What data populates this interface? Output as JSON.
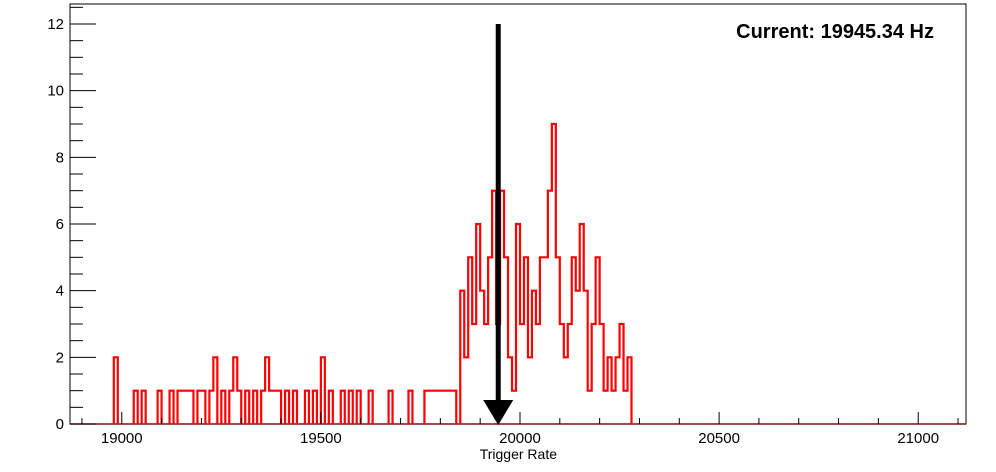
{
  "chart_data": {
    "type": "histogram",
    "xlabel": "Trigger Rate",
    "ylabel": "",
    "xlim": [
      18870,
      21120
    ],
    "ylim": [
      0,
      12.6
    ],
    "x_ticks": [
      19000,
      19500,
      20000,
      20500,
      21000
    ],
    "y_ticks": [
      0,
      2,
      4,
      6,
      8,
      10,
      12
    ],
    "grid": false,
    "bin_width": 10,
    "series": [
      {
        "color": "#ff0000",
        "bins": [
          {
            "x": 18980,
            "y": 2
          },
          {
            "x": 19030,
            "y": 1
          },
          {
            "x": 19050,
            "y": 1
          },
          {
            "x": 19090,
            "y": 1
          },
          {
            "x": 19120,
            "y": 1
          },
          {
            "x": 19140,
            "y": 1
          },
          {
            "x": 19150,
            "y": 1
          },
          {
            "x": 19160,
            "y": 1
          },
          {
            "x": 19170,
            "y": 1
          },
          {
            "x": 19190,
            "y": 1
          },
          {
            "x": 19200,
            "y": 1
          },
          {
            "x": 19220,
            "y": 1
          },
          {
            "x": 19230,
            "y": 2
          },
          {
            "x": 19250,
            "y": 1
          },
          {
            "x": 19270,
            "y": 1
          },
          {
            "x": 19280,
            "y": 2
          },
          {
            "x": 19290,
            "y": 1
          },
          {
            "x": 19310,
            "y": 1
          },
          {
            "x": 19330,
            "y": 1
          },
          {
            "x": 19350,
            "y": 1
          },
          {
            "x": 19360,
            "y": 2
          },
          {
            "x": 19370,
            "y": 1
          },
          {
            "x": 19380,
            "y": 1
          },
          {
            "x": 19390,
            "y": 1
          },
          {
            "x": 19410,
            "y": 1
          },
          {
            "x": 19430,
            "y": 1
          },
          {
            "x": 19460,
            "y": 1
          },
          {
            "x": 19480,
            "y": 1
          },
          {
            "x": 19500,
            "y": 2
          },
          {
            "x": 19520,
            "y": 1
          },
          {
            "x": 19550,
            "y": 1
          },
          {
            "x": 19570,
            "y": 1
          },
          {
            "x": 19590,
            "y": 1
          },
          {
            "x": 19620,
            "y": 1
          },
          {
            "x": 19670,
            "y": 1
          },
          {
            "x": 19720,
            "y": 1
          },
          {
            "x": 19760,
            "y": 1
          },
          {
            "x": 19770,
            "y": 1
          },
          {
            "x": 19780,
            "y": 1
          },
          {
            "x": 19790,
            "y": 1
          },
          {
            "x": 19800,
            "y": 1
          },
          {
            "x": 19810,
            "y": 1
          },
          {
            "x": 19820,
            "y": 1
          },
          {
            "x": 19830,
            "y": 1
          },
          {
            "x": 19850,
            "y": 4
          },
          {
            "x": 19860,
            "y": 2
          },
          {
            "x": 19870,
            "y": 5
          },
          {
            "x": 19880,
            "y": 3
          },
          {
            "x": 19890,
            "y": 6
          },
          {
            "x": 19900,
            "y": 4
          },
          {
            "x": 19910,
            "y": 3
          },
          {
            "x": 19920,
            "y": 5
          },
          {
            "x": 19930,
            "y": 7
          },
          {
            "x": 19940,
            "y": 3
          },
          {
            "x": 19950,
            "y": 7
          },
          {
            "x": 19960,
            "y": 5
          },
          {
            "x": 19970,
            "y": 2
          },
          {
            "x": 19980,
            "y": 1
          },
          {
            "x": 19990,
            "y": 6
          },
          {
            "x": 20000,
            "y": 3
          },
          {
            "x": 20010,
            "y": 5
          },
          {
            "x": 20020,
            "y": 2
          },
          {
            "x": 20030,
            "y": 4
          },
          {
            "x": 20040,
            "y": 3
          },
          {
            "x": 20050,
            "y": 5
          },
          {
            "x": 20060,
            "y": 5
          },
          {
            "x": 20070,
            "y": 7
          },
          {
            "x": 20080,
            "y": 9
          },
          {
            "x": 20090,
            "y": 5
          },
          {
            "x": 20100,
            "y": 3
          },
          {
            "x": 20110,
            "y": 2
          },
          {
            "x": 20120,
            "y": 3
          },
          {
            "x": 20130,
            "y": 5
          },
          {
            "x": 20140,
            "y": 4
          },
          {
            "x": 20150,
            "y": 6
          },
          {
            "x": 20160,
            "y": 4
          },
          {
            "x": 20170,
            "y": 1
          },
          {
            "x": 20180,
            "y": 3
          },
          {
            "x": 20190,
            "y": 5
          },
          {
            "x": 20200,
            "y": 3
          },
          {
            "x": 20210,
            "y": 1
          },
          {
            "x": 20220,
            "y": 2
          },
          {
            "x": 20230,
            "y": 1
          },
          {
            "x": 20240,
            "y": 2
          },
          {
            "x": 20250,
            "y": 3
          },
          {
            "x": 20260,
            "y": 1
          },
          {
            "x": 20270,
            "y": 2
          }
        ]
      }
    ],
    "marker": {
      "value": 19945.34,
      "color": "#000000",
      "label": "Current: 19945.34 Hz"
    }
  }
}
